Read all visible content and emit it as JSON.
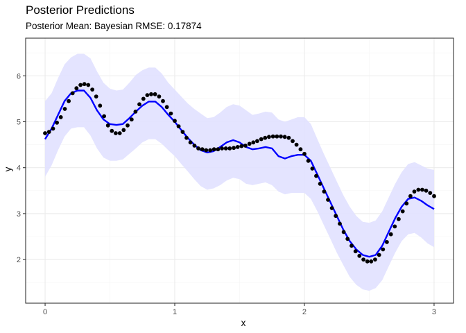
{
  "chart_data": {
    "type": "line",
    "title": "Posterior Predictions",
    "subtitle": "Posterior Mean: Bayesian RMSE: 0.17874",
    "xlabel": "x",
    "ylabel": "y",
    "xlim": [
      -0.15,
      3.15
    ],
    "ylim": [
      1.05,
      6.82
    ],
    "x_ticks": [
      0,
      1,
      2,
      3
    ],
    "x_tick_labels": [
      "0",
      "1",
      "2",
      "3"
    ],
    "y_ticks": [
      2,
      3,
      4,
      5,
      6
    ],
    "y_tick_labels": [
      "2",
      "3",
      "4",
      "5",
      "6"
    ],
    "grid": true,
    "legend": "none",
    "colors": {
      "band": "#e1e1ff",
      "mean_line": "#0000ff",
      "points": "#000000",
      "grid_major": "#ebebeb",
      "grid_minor": "#f5f5f5",
      "border": "#333333"
    },
    "series": [
      {
        "kind": "points",
        "x": [
          0.0,
          0.03,
          0.061,
          0.091,
          0.121,
          0.152,
          0.182,
          0.212,
          0.242,
          0.273,
          0.303,
          0.333,
          0.364,
          0.394,
          0.424,
          0.455,
          0.485,
          0.515,
          0.545,
          0.576,
          0.606,
          0.636,
          0.667,
          0.697,
          0.727,
          0.758,
          0.788,
          0.818,
          0.848,
          0.879,
          0.909,
          0.939,
          0.97,
          1.0,
          1.03,
          1.061,
          1.091,
          1.121,
          1.152,
          1.182,
          1.212,
          1.242,
          1.273,
          1.303,
          1.333,
          1.364,
          1.394,
          1.424,
          1.455,
          1.485,
          1.515,
          1.545,
          1.576,
          1.606,
          1.636,
          1.667,
          1.697,
          1.727,
          1.758,
          1.788,
          1.818,
          1.848,
          1.879,
          1.909,
          1.939,
          1.97,
          2.0,
          2.03,
          2.061,
          2.091,
          2.121,
          2.152,
          2.182,
          2.212,
          2.242,
          2.273,
          2.303,
          2.333,
          2.364,
          2.394,
          2.424,
          2.455,
          2.485,
          2.515,
          2.545,
          2.576,
          2.606,
          2.636,
          2.667,
          2.697,
          2.727,
          2.758,
          2.788,
          2.818,
          2.848,
          2.879,
          2.909,
          2.939,
          2.97,
          3.0
        ],
        "y": [
          4.75,
          4.78,
          4.85,
          4.98,
          5.1,
          5.28,
          5.45,
          5.62,
          5.73,
          5.8,
          5.82,
          5.8,
          5.7,
          5.55,
          5.35,
          5.12,
          4.92,
          4.8,
          4.75,
          4.75,
          4.82,
          4.92,
          5.05,
          5.22,
          5.38,
          5.5,
          5.58,
          5.6,
          5.6,
          5.55,
          5.45,
          5.32,
          5.18,
          5.02,
          4.9,
          4.78,
          4.65,
          4.55,
          4.48,
          4.42,
          4.4,
          4.38,
          4.38,
          4.4,
          4.4,
          4.42,
          4.42,
          4.42,
          4.43,
          4.45,
          4.47,
          4.48,
          4.52,
          4.55,
          4.58,
          4.62,
          4.65,
          4.67,
          4.68,
          4.68,
          4.68,
          4.67,
          4.65,
          4.58,
          4.5,
          4.4,
          4.3,
          4.15,
          3.98,
          3.82,
          3.65,
          3.48,
          3.3,
          3.12,
          2.95,
          2.78,
          2.6,
          2.45,
          2.3,
          2.18,
          2.08,
          2.0,
          1.96,
          1.96,
          2.0,
          2.1,
          2.22,
          2.38,
          2.55,
          2.72,
          2.88,
          3.05,
          3.22,
          3.38,
          3.48,
          3.52,
          3.52,
          3.5,
          3.45,
          3.38
        ]
      },
      {
        "kind": "line",
        "x": [
          0.0,
          0.05,
          0.1,
          0.15,
          0.2,
          0.25,
          0.3,
          0.35,
          0.4,
          0.45,
          0.5,
          0.55,
          0.6,
          0.65,
          0.7,
          0.75,
          0.8,
          0.85,
          0.9,
          0.95,
          1.0,
          1.05,
          1.1,
          1.15,
          1.2,
          1.25,
          1.3,
          1.35,
          1.4,
          1.45,
          1.5,
          1.55,
          1.6,
          1.65,
          1.7,
          1.75,
          1.8,
          1.85,
          1.9,
          1.95,
          2.0,
          2.05,
          2.1,
          2.15,
          2.2,
          2.25,
          2.3,
          2.35,
          2.4,
          2.45,
          2.5,
          2.55,
          2.6,
          2.65,
          2.7,
          2.75,
          2.8,
          2.85,
          2.9,
          2.95,
          3.0
        ],
        "y": [
          4.62,
          4.85,
          5.15,
          5.45,
          5.62,
          5.68,
          5.68,
          5.52,
          5.25,
          5.05,
          4.95,
          4.93,
          4.95,
          5.08,
          5.22,
          5.35,
          5.44,
          5.44,
          5.32,
          5.15,
          5.0,
          4.82,
          4.65,
          4.5,
          4.38,
          4.33,
          4.36,
          4.45,
          4.55,
          4.6,
          4.55,
          4.45,
          4.4,
          4.42,
          4.45,
          4.42,
          4.25,
          4.2,
          4.25,
          4.28,
          4.28,
          4.15,
          3.85,
          3.55,
          3.25,
          2.95,
          2.65,
          2.4,
          2.22,
          2.1,
          2.06,
          2.1,
          2.3,
          2.6,
          2.9,
          3.15,
          3.32,
          3.35,
          3.28,
          3.18,
          3.1
        ]
      },
      {
        "kind": "band",
        "x": [
          0.0,
          0.05,
          0.1,
          0.15,
          0.2,
          0.25,
          0.3,
          0.35,
          0.4,
          0.45,
          0.5,
          0.55,
          0.6,
          0.65,
          0.7,
          0.75,
          0.8,
          0.85,
          0.9,
          0.95,
          1.0,
          1.05,
          1.1,
          1.15,
          1.2,
          1.25,
          1.3,
          1.35,
          1.4,
          1.45,
          1.5,
          1.55,
          1.6,
          1.65,
          1.7,
          1.75,
          1.8,
          1.85,
          1.9,
          1.95,
          2.0,
          2.05,
          2.1,
          2.15,
          2.2,
          2.25,
          2.3,
          2.35,
          2.4,
          2.45,
          2.5,
          2.55,
          2.6,
          2.65,
          2.7,
          2.75,
          2.8,
          2.85,
          2.9,
          2.95,
          3.0
        ],
        "upper": [
          5.45,
          5.62,
          5.95,
          6.25,
          6.4,
          6.48,
          6.48,
          6.38,
          6.1,
          5.85,
          5.72,
          5.68,
          5.7,
          5.85,
          6.02,
          6.12,
          6.18,
          6.18,
          6.05,
          5.85,
          5.7,
          5.55,
          5.4,
          5.28,
          5.18,
          5.08,
          5.1,
          5.2,
          5.32,
          5.38,
          5.35,
          5.25,
          5.15,
          5.18,
          5.22,
          5.2,
          5.05,
          5.0,
          5.05,
          5.1,
          5.1,
          4.95,
          4.62,
          4.3,
          4.0,
          3.7,
          3.4,
          3.15,
          2.95,
          2.82,
          2.8,
          2.85,
          3.05,
          3.35,
          3.65,
          3.9,
          4.08,
          4.12,
          4.05,
          3.98,
          3.95
        ],
        "lower": [
          3.8,
          4.05,
          4.38,
          4.68,
          4.85,
          4.88,
          4.88,
          4.7,
          4.42,
          4.22,
          4.15,
          4.15,
          4.18,
          4.3,
          4.42,
          4.55,
          4.62,
          4.62,
          4.52,
          4.38,
          4.25,
          4.08,
          3.92,
          3.75,
          3.6,
          3.52,
          3.55,
          3.62,
          3.72,
          3.78,
          3.75,
          3.65,
          3.62,
          3.65,
          3.68,
          3.62,
          3.48,
          3.42,
          3.45,
          3.45,
          3.45,
          3.32,
          3.05,
          2.75,
          2.45,
          2.15,
          1.88,
          1.62,
          1.45,
          1.35,
          1.32,
          1.38,
          1.55,
          1.85,
          2.15,
          2.4,
          2.55,
          2.58,
          2.48,
          2.35,
          2.27
        ]
      }
    ]
  }
}
